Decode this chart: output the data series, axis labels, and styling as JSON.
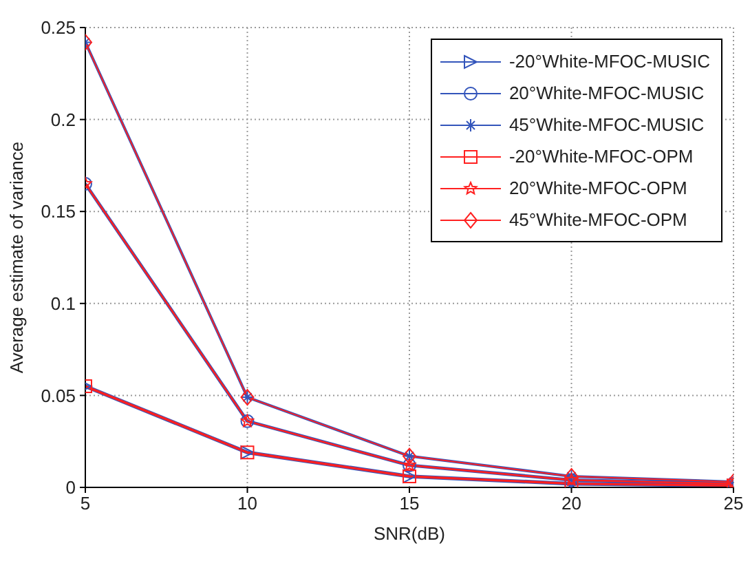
{
  "chart_data": {
    "type": "line",
    "xlabel": "SNR(dB)",
    "ylabel": "Average estimate of variance",
    "x": [
      5,
      10,
      15,
      20,
      25
    ],
    "xlim": [
      5,
      25
    ],
    "xticks": [
      5,
      10,
      15,
      20,
      25
    ],
    "ylim": [
      0,
      0.25
    ],
    "yticks": [
      0,
      0.05,
      0.1,
      0.15,
      0.2,
      0.25
    ],
    "grid": true,
    "legend": "top right",
    "series": [
      {
        "name": "-20°White-MFOC-MUSIC",
        "color": "#3355bb",
        "marker": "triangle",
        "values": [
          0.055,
          0.019,
          0.006,
          0.002,
          0.001
        ]
      },
      {
        "name": "20°White-MFOC-MUSIC",
        "color": "#3355bb",
        "marker": "circle",
        "values": [
          0.165,
          0.036,
          0.012,
          0.004,
          0.002
        ]
      },
      {
        "name": "45°White-MFOC-MUSIC",
        "color": "#3355bb",
        "marker": "cross",
        "values": [
          0.242,
          0.049,
          0.017,
          0.006,
          0.003
        ]
      },
      {
        "name": "-20°White-MFOC-OPM",
        "color": "#ff2020",
        "marker": "square",
        "values": [
          0.055,
          0.019,
          0.006,
          0.002,
          0.001
        ]
      },
      {
        "name": "20°White-MFOC-OPM",
        "color": "#ff2020",
        "marker": "star",
        "values": [
          0.165,
          0.036,
          0.012,
          0.004,
          0.002
        ]
      },
      {
        "name": "45°White-MFOC-OPM",
        "color": "#ff2020",
        "marker": "diamond",
        "values": [
          0.242,
          0.049,
          0.017,
          0.006,
          0.003
        ]
      }
    ]
  }
}
